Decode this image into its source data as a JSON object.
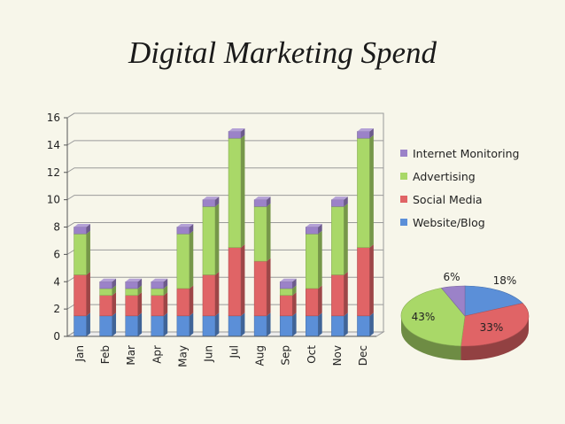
{
  "title": "Digital Marketing Spend",
  "chart_data": [
    {
      "type": "bar",
      "stacked": true,
      "categories": [
        "Jan",
        "Feb",
        "Mar",
        "Apr",
        "May",
        "Jun",
        "Jul",
        "Aug",
        "Sep",
        "Oct",
        "Nov",
        "Dec"
      ],
      "series": [
        {
          "name": "Website/Blog",
          "color": "#5b8fd8",
          "values": [
            1.5,
            1.5,
            1.5,
            1.5,
            1.5,
            1.5,
            1.5,
            1.5,
            1.5,
            1.5,
            1.5,
            1.5
          ]
        },
        {
          "name": "Social Media",
          "color": "#e06466",
          "values": [
            3,
            1.5,
            1.5,
            1.5,
            2,
            3,
            5,
            4,
            1.5,
            2,
            3,
            5
          ]
        },
        {
          "name": "Advertising",
          "color": "#a9d868",
          "values": [
            3,
            0.5,
            0.5,
            0.5,
            4,
            5,
            8,
            4,
            0.5,
            4,
            5,
            8
          ]
        },
        {
          "name": "Internet Monitoring",
          "color": "#9b82c8",
          "values": [
            0.5,
            0.5,
            0.5,
            0.5,
            0.5,
            0.5,
            0.5,
            0.5,
            0.5,
            0.5,
            0.5,
            0.5
          ]
        }
      ],
      "ylim": [
        0,
        16
      ],
      "yticks": [
        "0",
        "2",
        "4",
        "6",
        "8",
        "10",
        "12",
        "14",
        "16"
      ],
      "grid": true,
      "legend": "right"
    },
    {
      "type": "pie",
      "slices": [
        {
          "name": "Website/Blog",
          "value": 18,
          "label": "18%",
          "color": "#5b8fd8"
        },
        {
          "name": "Social Media",
          "value": 33,
          "label": "33%",
          "color": "#e06466"
        },
        {
          "name": "Advertising",
          "value": 43,
          "label": "43%",
          "color": "#a9d868"
        },
        {
          "name": "Internet Monitoring",
          "value": 6,
          "label": "6%",
          "color": "#9b82c8"
        }
      ]
    }
  ]
}
